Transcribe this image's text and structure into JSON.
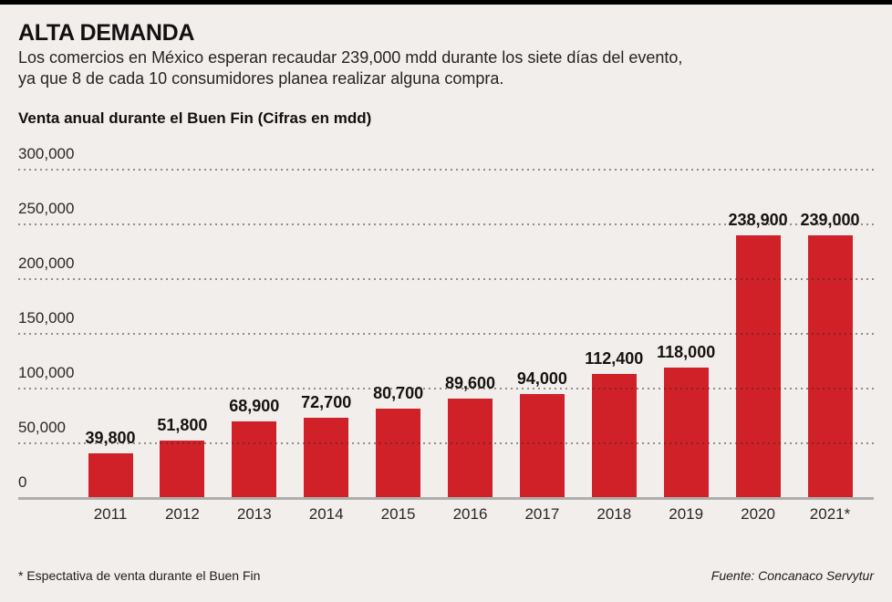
{
  "page": {
    "title": "ALTA DEMANDA",
    "subtitle_line1": "Los comercios en México esperan recaudar 239,000 mdd durante los siete días del evento,",
    "subtitle_line2": "ya que 8 de cada 10 consumidores planea realizar alguna compra.",
    "footnote": "* Espectativa de venta durante el Buen Fin",
    "source": "Fuente: Concanaco Servytur",
    "background_color": "#f1eeec",
    "top_bar_color": "#000000"
  },
  "chart_data": {
    "type": "bar",
    "title": "Venta anual durante el Buen Fin (Cifras en mdd)",
    "categories": [
      "2011",
      "2012",
      "2013",
      "2014",
      "2015",
      "2016",
      "2017",
      "2018",
      "2019",
      "2020",
      "2021*"
    ],
    "values": [
      39800,
      51800,
      68900,
      72700,
      80700,
      89600,
      94000,
      112400,
      118000,
      238900,
      239000
    ],
    "value_labels": [
      "39,800",
      "51,800",
      "68,900",
      "72,700",
      "80,700",
      "89,600",
      "94,000",
      "112,400",
      "118,000",
      "238,900",
      "239,000"
    ],
    "y_ticks": [
      0,
      50000,
      100000,
      150000,
      200000,
      250000,
      300000
    ],
    "y_tick_labels": [
      "0",
      "50,000",
      "100,000",
      "150,000",
      "200,000",
      "250,000",
      "300,000"
    ],
    "ylim": [
      0,
      300000
    ],
    "xlabel": "",
    "ylabel": "",
    "grid": "horizontal-dotted",
    "legend": "none",
    "bar_color": "#d02129",
    "axis_line_color": "#b0aeab"
  }
}
